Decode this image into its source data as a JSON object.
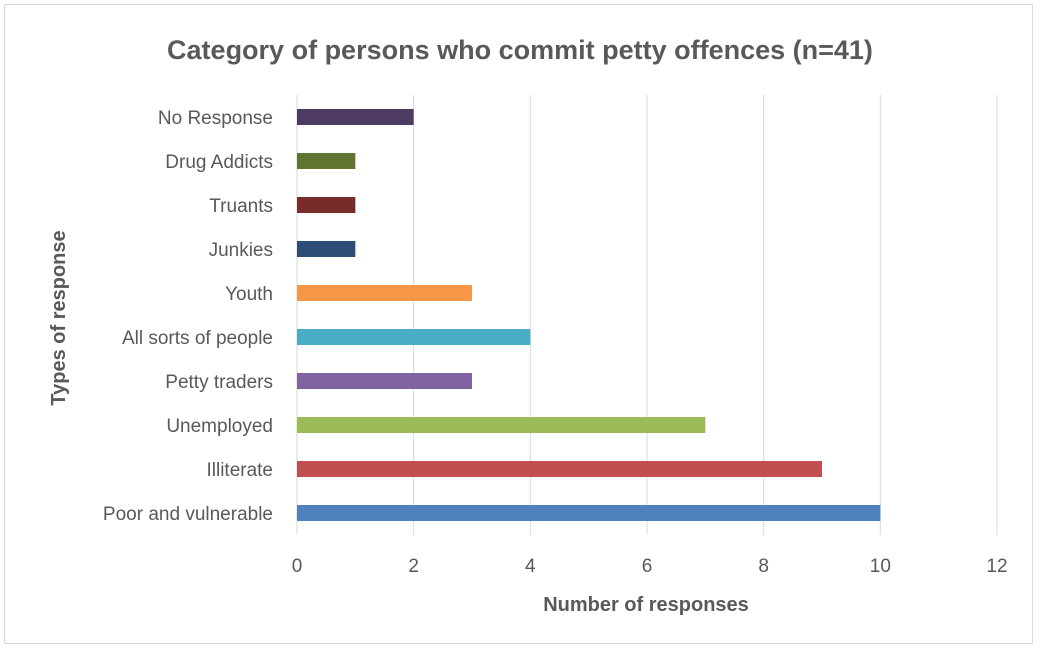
{
  "chart_data": {
    "type": "bar",
    "orientation": "horizontal",
    "title": "Category of persons who commit petty offences (n=41)",
    "xlabel": "Number of responses",
    "ylabel": "Types of response",
    "xlim": [
      0,
      12
    ],
    "x_ticks": [
      0,
      2,
      4,
      6,
      8,
      10,
      12
    ],
    "grid": true,
    "legend": "none",
    "categories": [
      "Poor and vulnerable",
      "Illiterate",
      "Unemployed",
      "Petty traders",
      "All sorts of people",
      "Youth",
      "Junkies",
      "Truants",
      "Drug Addicts",
      "No Response"
    ],
    "values": [
      10,
      9,
      7,
      3,
      4,
      3,
      1,
      1,
      1,
      2
    ],
    "colors": [
      "#4f81bd",
      "#c0504d",
      "#9bbb59",
      "#8064a2",
      "#4bacc6",
      "#f79646",
      "#2c4d75",
      "#772c2a",
      "#5f7530",
      "#4d3b62"
    ]
  }
}
